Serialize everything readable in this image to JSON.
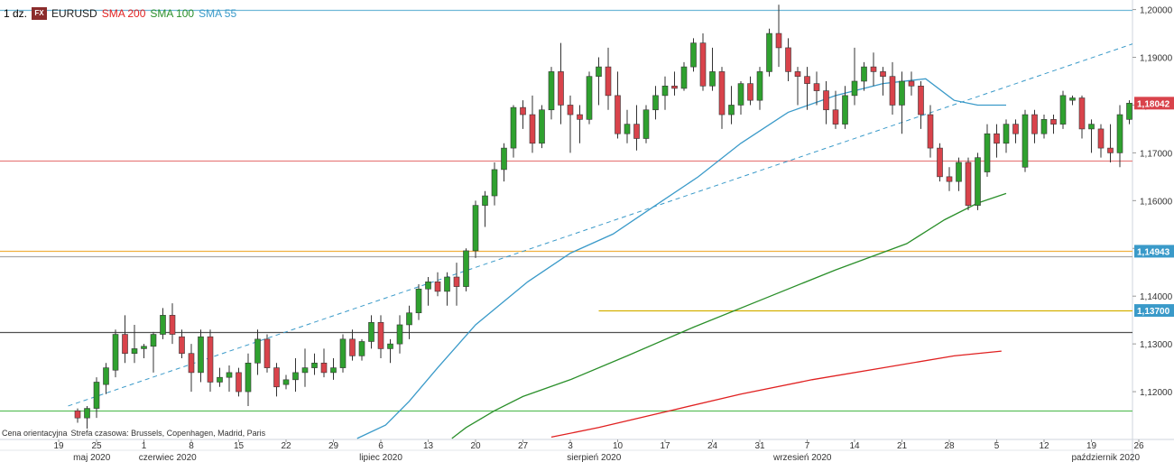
{
  "header": {
    "timeframe": "1 dz.",
    "fx_badge": "FX",
    "symbol": "EURUSD",
    "sma200_label": "SMA 200",
    "sma100_label": "SMA 100",
    "sma55_label": "SMA 55"
  },
  "footer": {
    "price_note": "Cena orientacyjna",
    "timezone_note": "Strefa czasowa: Brussels, Copenhagen, Madrid, Paris"
  },
  "colors": {
    "up": "#2fa12f",
    "down": "#d9434b",
    "sma200": "#e02020",
    "sma100": "#2a8f2a",
    "sma55": "#3a9ac9",
    "level_top": "#6fb8d8",
    "level_red": "#e88080",
    "level_orange": "#f0b040",
    "level_gray": "#a8a8a8",
    "level_gold": "#d4b000",
    "level_dark": "#505050",
    "level_green": "#5cc05c",
    "label_red_bg": "#d9434b",
    "label_blue_bg": "#3a9ac9"
  },
  "chart_data": {
    "type": "candlestick",
    "symbol": "EURUSD",
    "timeframe": "1 dz.",
    "ylim": [
      1.11,
      1.202
    ],
    "y_ticks": [
      "1,12000",
      "1,13000",
      "1,14000",
      "1,15000",
      "1,16000",
      "1,17000",
      "1,18000",
      "1,19000",
      "1,20000"
    ],
    "y_tick_values": [
      1.12,
      1.13,
      1.14,
      1.15,
      1.16,
      1.17,
      1.18,
      1.19,
      1.2
    ],
    "x_day_labels": [
      "19",
      "25",
      "1",
      "8",
      "15",
      "22",
      "29",
      "6",
      "13",
      "20",
      "27",
      "3",
      "10",
      "17",
      "24",
      "31",
      "7",
      "14",
      "21",
      "28",
      "5",
      "12",
      "19",
      "26"
    ],
    "x_day_label_index": [
      -2,
      2,
      7,
      12,
      17,
      22,
      27,
      32,
      37,
      42,
      47,
      52,
      57,
      62,
      67,
      72,
      77,
      82,
      87,
      92,
      97,
      102,
      107,
      112
    ],
    "x_month_labels": [
      "maj 2020",
      "czerwiec 2020",
      "lipiec 2020",
      "sierpień 2020",
      "wrzesień 2020",
      "październik 2020"
    ],
    "x_month_label_index": [
      1.5,
      9.5,
      32,
      54.5,
      76.5,
      108.5
    ],
    "candles": [
      [
        1.116,
        1.1165,
        1.1135,
        1.1145
      ],
      [
        1.1145,
        1.117,
        1.112,
        1.1165
      ],
      [
        1.1165,
        1.123,
        1.1145,
        1.122
      ],
      [
        1.1215,
        1.126,
        1.1195,
        1.125
      ],
      [
        1.1245,
        1.133,
        1.123,
        1.132
      ],
      [
        1.132,
        1.136,
        1.126,
        1.128
      ],
      [
        1.128,
        1.134,
        1.126,
        1.129
      ],
      [
        1.129,
        1.13,
        1.127,
        1.1295
      ],
      [
        1.1295,
        1.1325,
        1.124,
        1.132
      ],
      [
        1.132,
        1.1375,
        1.131,
        1.136
      ],
      [
        1.136,
        1.1385,
        1.13,
        1.132
      ],
      [
        1.1315,
        1.133,
        1.127,
        1.128
      ],
      [
        1.128,
        1.13,
        1.12,
        1.124
      ],
      [
        1.124,
        1.133,
        1.122,
        1.1315
      ],
      [
        1.1315,
        1.133,
        1.12,
        1.122
      ],
      [
        1.122,
        1.125,
        1.121,
        1.123
      ],
      [
        1.123,
        1.1255,
        1.12,
        1.124
      ],
      [
        1.124,
        1.125,
        1.119,
        1.12
      ],
      [
        1.12,
        1.128,
        1.117,
        1.126
      ],
      [
        1.126,
        1.133,
        1.1235,
        1.131
      ],
      [
        1.131,
        1.132,
        1.124,
        1.125
      ],
      [
        1.125,
        1.126,
        1.119,
        1.121
      ],
      [
        1.1215,
        1.1235,
        1.1205,
        1.1225
      ],
      [
        1.1225,
        1.127,
        1.12,
        1.124
      ],
      [
        1.124,
        1.129,
        1.121,
        1.125
      ],
      [
        1.125,
        1.128,
        1.1235,
        1.126
      ],
      [
        1.126,
        1.129,
        1.123,
        1.124
      ],
      [
        1.124,
        1.127,
        1.1225,
        1.125
      ],
      [
        1.125,
        1.132,
        1.124,
        1.131
      ],
      [
        1.131,
        1.133,
        1.1265,
        1.1275
      ],
      [
        1.1275,
        1.131,
        1.1265,
        1.1305
      ],
      [
        1.1305,
        1.136,
        1.129,
        1.1345
      ],
      [
        1.1345,
        1.136,
        1.127,
        1.129
      ],
      [
        1.129,
        1.131,
        1.126,
        1.13
      ],
      [
        1.13,
        1.136,
        1.128,
        1.134
      ],
      [
        1.134,
        1.138,
        1.131,
        1.1365
      ],
      [
        1.1365,
        1.1425,
        1.135,
        1.1415
      ],
      [
        1.1415,
        1.144,
        1.138,
        1.143
      ],
      [
        1.143,
        1.145,
        1.14,
        1.141
      ],
      [
        1.141,
        1.145,
        1.138,
        1.144
      ],
      [
        1.144,
        1.147,
        1.138,
        1.142
      ],
      [
        1.142,
        1.15,
        1.141,
        1.1495
      ],
      [
        1.1495,
        1.16,
        1.148,
        1.159
      ],
      [
        1.159,
        1.162,
        1.1545,
        1.161
      ],
      [
        1.161,
        1.168,
        1.159,
        1.1665
      ],
      [
        1.1665,
        1.172,
        1.164,
        1.171
      ],
      [
        1.171,
        1.18,
        1.169,
        1.1795
      ],
      [
        1.1795,
        1.181,
        1.175,
        1.178
      ],
      [
        1.178,
        1.182,
        1.17,
        1.172
      ],
      [
        1.172,
        1.18,
        1.171,
        1.179
      ],
      [
        1.179,
        1.188,
        1.177,
        1.187
      ],
      [
        1.187,
        1.193,
        1.176,
        1.18
      ],
      [
        1.18,
        1.182,
        1.17,
        1.178
      ],
      [
        1.178,
        1.18,
        1.172,
        1.177
      ],
      [
        1.177,
        1.187,
        1.176,
        1.186
      ],
      [
        1.186,
        1.19,
        1.18,
        1.188
      ],
      [
        1.188,
        1.192,
        1.179,
        1.182
      ],
      [
        1.182,
        1.187,
        1.173,
        1.174
      ],
      [
        1.174,
        1.179,
        1.172,
        1.176
      ],
      [
        1.176,
        1.18,
        1.1705,
        1.173
      ],
      [
        1.173,
        1.18,
        1.172,
        1.179
      ],
      [
        1.179,
        1.184,
        1.177,
        1.182
      ],
      [
        1.182,
        1.186,
        1.179,
        1.184
      ],
      [
        1.184,
        1.187,
        1.182,
        1.1835
      ],
      [
        1.1835,
        1.189,
        1.183,
        1.188
      ],
      [
        1.188,
        1.194,
        1.187,
        1.193
      ],
      [
        1.193,
        1.195,
        1.183,
        1.184
      ],
      [
        1.184,
        1.192,
        1.183,
        1.187
      ],
      [
        1.187,
        1.188,
        1.175,
        1.178
      ],
      [
        1.178,
        1.184,
        1.176,
        1.18
      ],
      [
        1.18,
        1.185,
        1.178,
        1.1845
      ],
      [
        1.1845,
        1.186,
        1.18,
        1.181
      ],
      [
        1.181,
        1.188,
        1.179,
        1.187
      ],
      [
        1.187,
        1.196,
        1.186,
        1.195
      ],
      [
        1.195,
        1.201,
        1.188,
        1.192
      ],
      [
        1.192,
        1.194,
        1.185,
        1.187
      ],
      [
        1.187,
        1.188,
        1.18,
        1.186
      ],
      [
        1.186,
        1.188,
        1.179,
        1.1845
      ],
      [
        1.1845,
        1.187,
        1.18,
        1.183
      ],
      [
        1.183,
        1.185,
        1.176,
        1.179
      ],
      [
        1.179,
        1.183,
        1.175,
        1.176
      ],
      [
        1.176,
        1.184,
        1.175,
        1.182
      ],
      [
        1.182,
        1.192,
        1.18,
        1.185
      ],
      [
        1.185,
        1.189,
        1.183,
        1.188
      ],
      [
        1.188,
        1.191,
        1.184,
        1.187
      ],
      [
        1.187,
        1.188,
        1.182,
        1.186
      ],
      [
        1.186,
        1.189,
        1.178,
        1.18
      ],
      [
        1.18,
        1.187,
        1.174,
        1.185
      ],
      [
        1.185,
        1.187,
        1.182,
        1.184
      ],
      [
        1.184,
        1.185,
        1.175,
        1.178
      ],
      [
        1.178,
        1.18,
        1.169,
        1.171
      ],
      [
        1.171,
        1.172,
        1.164,
        1.165
      ],
      [
        1.165,
        1.167,
        1.162,
        1.164
      ],
      [
        1.164,
        1.169,
        1.162,
        1.168
      ],
      [
        1.168,
        1.169,
        1.158,
        1.159
      ],
      [
        1.159,
        1.17,
        1.158,
        1.169
      ],
      [
        1.166,
        1.176,
        1.165,
        1.174
      ],
      [
        1.174,
        1.176,
        1.169,
        1.172
      ],
      [
        1.172,
        1.177,
        1.17,
        1.176
      ],
      [
        1.176,
        1.177,
        1.172,
        1.174
      ],
      [
        1.167,
        1.179,
        1.166,
        1.178
      ],
      [
        1.178,
        1.179,
        1.172,
        1.174
      ],
      [
        1.174,
        1.178,
        1.173,
        1.177
      ],
      [
        1.177,
        1.178,
        1.174,
        1.176
      ],
      [
        1.176,
        1.183,
        1.175,
        1.182
      ],
      [
        1.181,
        1.182,
        1.18,
        1.1815
      ],
      [
        1.1815,
        1.182,
        1.173,
        1.175
      ],
      [
        1.175,
        1.177,
        1.17,
        1.176
      ],
      [
        1.175,
        1.176,
        1.169,
        1.171
      ],
      [
        1.171,
        1.176,
        1.168,
        1.17
      ],
      [
        1.17,
        1.18,
        1.167,
        1.178
      ],
      [
        1.177,
        1.181,
        1.176,
        1.1804
      ]
    ],
    "series": [
      {
        "name": "SMA 200",
        "points": [
          [
            100,
            1.1105
          ],
          [
            110,
            1.1125
          ],
          [
            125,
            1.116
          ],
          [
            140,
            1.1195
          ],
          [
            155,
            1.1225
          ],
          [
            170,
            1.125
          ],
          [
            185,
            1.1275
          ],
          [
            195,
            1.1285
          ]
        ]
      },
      {
        "name": "SMA 100",
        "points": [
          [
            79,
            1.1102
          ],
          [
            82,
            1.1125
          ],
          [
            88,
            1.116
          ],
          [
            94,
            1.119
          ],
          [
            104,
            1.1225
          ],
          [
            116,
            1.1275
          ],
          [
            130,
            1.1335
          ],
          [
            145,
            1.1395
          ],
          [
            160,
            1.1455
          ],
          [
            175,
            1.151
          ],
          [
            183,
            1.156
          ],
          [
            190,
            1.1595
          ],
          [
            196,
            1.1615
          ]
        ]
      },
      {
        "name": "SMA 55",
        "points": [
          [
            59,
            1.1102
          ],
          [
            65,
            1.113
          ],
          [
            70,
            1.118
          ],
          [
            76,
            1.125
          ],
          [
            84,
            1.134
          ],
          [
            95,
            1.143
          ],
          [
            104,
            1.149
          ],
          [
            113,
            1.153
          ],
          [
            122,
            1.159
          ],
          [
            131,
            1.165
          ],
          [
            140,
            1.172
          ],
          [
            150,
            1.1785
          ],
          [
            160,
            1.182
          ],
          [
            170,
            1.1845
          ],
          [
            179,
            1.1855
          ],
          [
            185,
            1.181
          ],
          [
            190,
            1.18
          ],
          [
            196,
            1.18
          ]
        ]
      }
    ],
    "levels": [
      {
        "value": 1.2,
        "role": "level_top",
        "label": ""
      },
      {
        "value": 1.1684,
        "role": "level_red",
        "label": ""
      },
      {
        "value": 1.1494,
        "role": "level_orange",
        "label": "1,14943"
      },
      {
        "value": 1.1483,
        "role": "level_gray",
        "label": ""
      },
      {
        "value": 1.137,
        "role": "level_gold",
        "label": "1,13700",
        "from_index": 55
      },
      {
        "value": 1.1324,
        "role": "level_dark",
        "label": ""
      },
      {
        "value": 1.116,
        "role": "level_green",
        "label": ""
      }
    ],
    "last_price": {
      "value": 1.1804,
      "label": "1,18042"
    },
    "trendline": {
      "from": [
        -1,
        1.117
      ],
      "to": [
        122,
        1.2
      ],
      "dashed": true,
      "extend_to": [
        146,
        1.2
      ]
    }
  }
}
